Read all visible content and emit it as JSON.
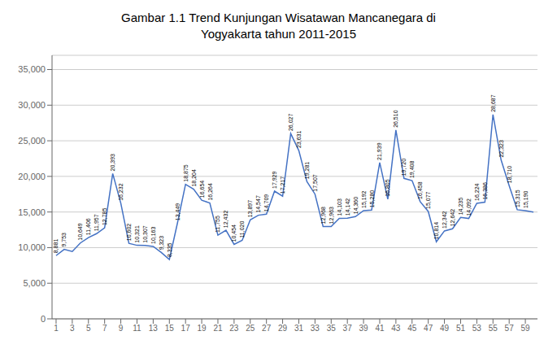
{
  "chart_data": {
    "type": "line",
    "title": "Gambar 1.1 Trend Kunjungan Wisatawan Mancanegara di\nYogyakarta tahun 2011-2015",
    "x": [
      1,
      2,
      3,
      4,
      5,
      6,
      7,
      8,
      9,
      10,
      11,
      12,
      13,
      14,
      15,
      16,
      17,
      18,
      19,
      20,
      21,
      22,
      23,
      24,
      25,
      26,
      27,
      28,
      29,
      30,
      31,
      32,
      33,
      34,
      35,
      36,
      37,
      38,
      39,
      40,
      41,
      42,
      43,
      44,
      45,
      46,
      47,
      48,
      49,
      50,
      51,
      52,
      53,
      54,
      55,
      56,
      57,
      58,
      59,
      60
    ],
    "values": [
      8881,
      9753,
      9449,
      10649,
      11406,
      11957,
      12785,
      20393,
      16232,
      10602,
      10321,
      10307,
      10163,
      9323,
      8335,
      13449,
      18875,
      18204,
      16654,
      16264,
      11755,
      12432,
      10454,
      11020,
      13897,
      14547,
      14709,
      17929,
      17217,
      26027,
      23631,
      19281,
      17507,
      12968,
      12963,
      14103,
      14142,
      14360,
      15192,
      15280,
      21939,
      16805,
      26510,
      19720,
      19408,
      16458,
      15077,
      10814,
      12342,
      12642,
      14235,
      14092,
      16224,
      16386,
      28687,
      22323,
      18710,
      15315,
      15190,
      15000
    ],
    "value_labels": [
      "8,881",
      "9,753",
      null,
      "10,649",
      "11,406",
      "11,957",
      "12,785",
      "20,393",
      "16,232",
      "10,602",
      "10,321",
      "10,307",
      "10,163",
      "9,323",
      "8,335",
      "13,449",
      "18,875",
      "18,204",
      "16,654",
      "16,264",
      "11,755",
      "12,432",
      "10,454",
      "11,020",
      "13,897",
      "14,547",
      "14,709",
      "17,929",
      "17,217",
      "26,027",
      "23,631",
      "19,281",
      "17,507",
      "12,968",
      "12,963",
      "14,103",
      "14,142",
      "14,360",
      "15,192",
      "15,280",
      "21,939",
      "16,805",
      "26,510",
      "19,720",
      "19,408",
      "16,458",
      "15,077",
      "10,814",
      "12,342",
      "12,642",
      "14,235",
      "14,092",
      "16,224",
      "16,386",
      "28,687",
      "22,323",
      "18,710",
      "15,315",
      "15,190",
      null
    ],
    "color": "#4472c4",
    "xlim": [
      0.5,
      60.5
    ],
    "xticks": [
      1,
      3,
      5,
      7,
      9,
      11,
      13,
      15,
      17,
      19,
      21,
      23,
      25,
      27,
      29,
      31,
      33,
      35,
      37,
      39,
      41,
      43,
      45,
      47,
      49,
      51,
      53,
      55,
      57,
      59
    ],
    "ylim": [
      0,
      37000
    ],
    "yticks": [
      0,
      {
        "value": 5000,
        "label": "5,000"
      },
      {
        "value": 10000,
        "label": "10,000"
      },
      {
        "value": 15000,
        "label": "15,000"
      },
      {
        "value": 20000,
        "label": "20,000"
      },
      {
        "value": 25000,
        "label": "25,000"
      },
      {
        "value": 30000,
        "label": "30,000"
      },
      {
        "value": 35000,
        "label": "35,000"
      }
    ],
    "grid": true,
    "data_labels": true
  }
}
